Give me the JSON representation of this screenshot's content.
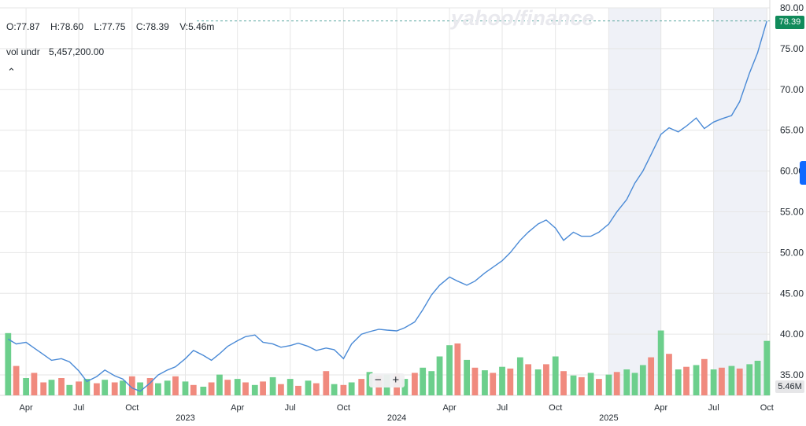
{
  "legend": {
    "open": "O:77.87",
    "high": "H:78.60",
    "low": "L:77.75",
    "close": "C:78.39",
    "volume": "V:5.46m",
    "vol_label": "vol undr",
    "vol_value": "5,457,200.00",
    "collapse_icon": "chevron-up-icon"
  },
  "watermark": "yahoo/finance",
  "current_price": "78.39",
  "current_volume": "5.46M",
  "zoom": {
    "minus": "−",
    "plus": "+"
  },
  "colors": {
    "line": "#4a8ad6",
    "up": "#6ccf8c",
    "down": "#f08a7e",
    "badge": "#118b5b",
    "shade": "#e9ecf4"
  },
  "chart_data": {
    "type": "line",
    "ylabel": "",
    "ylim": [
      32.5,
      80
    ],
    "y_ticks": [
      35,
      40,
      45,
      50,
      55,
      60,
      65,
      70,
      75,
      80
    ],
    "y_tick_labels": [
      "35.00",
      "40.00",
      "45.00",
      "50.00",
      "55.00",
      "60.00",
      "65.00",
      "70.00",
      "75.00",
      "80.00"
    ],
    "x_ticks": [
      {
        "label": "Apr",
        "date": "2022-04-01"
      },
      {
        "label": "Jul",
        "date": "2022-07-01"
      },
      {
        "label": "Oct",
        "date": "2022-10-01"
      },
      {
        "label": "Apr",
        "date": "2023-04-01"
      },
      {
        "label": "Jul",
        "date": "2023-07-01"
      },
      {
        "label": "Oct",
        "date": "2023-10-01"
      },
      {
        "label": "Apr",
        "date": "2024-04-01"
      },
      {
        "label": "Jul",
        "date": "2024-07-01"
      },
      {
        "label": "Oct",
        "date": "2024-10-01"
      },
      {
        "label": "Apr",
        "date": "2025-04-01"
      },
      {
        "label": "Jul",
        "date": "2025-07-01"
      },
      {
        "label": "Oct",
        "date": "2025-10-01"
      }
    ],
    "year_ticks": [
      {
        "label": "2023",
        "date": "2023-01-01"
      },
      {
        "label": "2024",
        "date": "2024-01-01"
      },
      {
        "label": "2025",
        "date": "2025-01-01"
      }
    ],
    "shaded_ranges": [
      [
        "2025-01-01",
        "2025-04-01"
      ],
      [
        "2025-07-01",
        "2025-10-01"
      ]
    ],
    "price": {
      "x": [
        "2022-03-01",
        "2022-03-15",
        "2022-04-01",
        "2022-04-15",
        "2022-05-01",
        "2022-05-15",
        "2022-06-01",
        "2022-06-15",
        "2022-07-01",
        "2022-07-15",
        "2022-08-01",
        "2022-08-15",
        "2022-09-01",
        "2022-09-15",
        "2022-10-01",
        "2022-10-15",
        "2022-11-01",
        "2022-11-15",
        "2022-12-01",
        "2022-12-15",
        "2023-01-01",
        "2023-01-15",
        "2023-02-01",
        "2023-02-15",
        "2023-03-01",
        "2023-03-15",
        "2023-04-01",
        "2023-04-15",
        "2023-05-01",
        "2023-05-15",
        "2023-06-01",
        "2023-06-15",
        "2023-07-01",
        "2023-07-15",
        "2023-08-01",
        "2023-08-15",
        "2023-09-01",
        "2023-09-15",
        "2023-10-01",
        "2023-10-15",
        "2023-11-01",
        "2023-11-15",
        "2023-12-01",
        "2023-12-15",
        "2024-01-01",
        "2024-01-15",
        "2024-02-01",
        "2024-02-15",
        "2024-03-01",
        "2024-03-15",
        "2024-04-01",
        "2024-04-15",
        "2024-05-01",
        "2024-05-15",
        "2024-06-01",
        "2024-06-15",
        "2024-07-01",
        "2024-07-15",
        "2024-08-01",
        "2024-08-15",
        "2024-09-01",
        "2024-09-15",
        "2024-10-01",
        "2024-10-15",
        "2024-11-01",
        "2024-11-15",
        "2024-12-01",
        "2024-12-15",
        "2025-01-01",
        "2025-01-15",
        "2025-02-01",
        "2025-02-15",
        "2025-03-01",
        "2025-03-15",
        "2025-04-01",
        "2025-04-15",
        "2025-05-01",
        "2025-05-15",
        "2025-06-01",
        "2025-06-15",
        "2025-07-01",
        "2025-07-15",
        "2025-08-01",
        "2025-08-15",
        "2025-09-01",
        "2025-09-15",
        "2025-10-01"
      ],
      "y": [
        39.4,
        38.8,
        39.0,
        38.3,
        37.5,
        36.8,
        37.0,
        36.6,
        35.5,
        34.2,
        34.8,
        35.6,
        34.9,
        34.5,
        33.4,
        33.0,
        34.0,
        35.0,
        35.6,
        36.0,
        37.0,
        38.0,
        37.4,
        36.8,
        37.6,
        38.5,
        39.2,
        39.7,
        39.9,
        39.0,
        38.8,
        38.4,
        38.6,
        38.9,
        38.5,
        38.0,
        38.3,
        38.1,
        37.0,
        38.8,
        40.0,
        40.3,
        40.6,
        40.5,
        40.4,
        40.8,
        41.5,
        43.0,
        44.8,
        46.0,
        47.0,
        46.5,
        46.0,
        46.5,
        47.5,
        48.2,
        49.0,
        50.0,
        51.5,
        52.5,
        53.5,
        54.0,
        53.0,
        51.5,
        52.5,
        52.0,
        52.0,
        52.5,
        53.5,
        55.0,
        56.5,
        58.5,
        60.0,
        62.0,
        64.5,
        65.3,
        64.8,
        65.5,
        66.5,
        65.2,
        66.0,
        66.4,
        66.8,
        68.5,
        72.0,
        74.5,
        78.4
      ]
    },
    "volume": {
      "ylim": [
        0,
        10
      ],
      "values": [
        7.2,
        3.4,
        2.0,
        2.6,
        1.5,
        1.8,
        2.0,
        1.2,
        1.6,
        1.9,
        1.4,
        1.8,
        1.5,
        1.7,
        2.2,
        1.5,
        2.0,
        1.4,
        1.7,
        2.2,
        1.6,
        1.2,
        1.0,
        1.5,
        2.4,
        1.8,
        1.9,
        1.5,
        1.2,
        1.6,
        2.1,
        1.3,
        1.9,
        1.1,
        1.7,
        1.4,
        2.8,
        1.3,
        1.2,
        1.5,
        1.9,
        2.7,
        2.3,
        2.4,
        2.5,
        1.9,
        2.6,
        3.2,
        2.8,
        4.5,
        5.8,
        6.0,
        4.1,
        3.2,
        2.9,
        2.6,
        3.3,
        3.1,
        4.4,
        3.6,
        3.0,
        3.6,
        4.5,
        2.8,
        2.3,
        2.1,
        2.6,
        1.9,
        2.4,
        2.7,
        3.0,
        2.6,
        3.5,
        4.4,
        7.5,
        4.8,
        3.0,
        3.3,
        3.5,
        4.2,
        3.0,
        3.2,
        3.4,
        3.1,
        3.6,
        4.0,
        6.3
      ],
      "up": [
        true,
        false,
        true,
        false,
        false,
        true,
        false,
        true,
        false,
        true,
        false,
        true,
        false,
        true,
        false,
        true,
        false,
        true,
        true,
        false,
        true,
        false,
        true,
        false,
        true,
        false,
        true,
        false,
        true,
        false,
        true,
        false,
        true,
        false,
        true,
        false,
        false,
        true,
        false,
        true,
        false,
        true,
        false,
        true,
        false,
        true,
        false,
        true,
        true,
        true,
        true,
        false,
        true,
        false,
        true,
        false,
        true,
        false,
        true,
        false,
        true,
        false,
        true,
        false,
        true,
        false,
        true,
        false,
        true,
        false,
        true,
        true,
        true,
        false,
        true,
        false,
        true,
        false,
        true,
        false,
        true,
        false,
        true,
        false,
        true,
        true,
        true
      ]
    }
  }
}
